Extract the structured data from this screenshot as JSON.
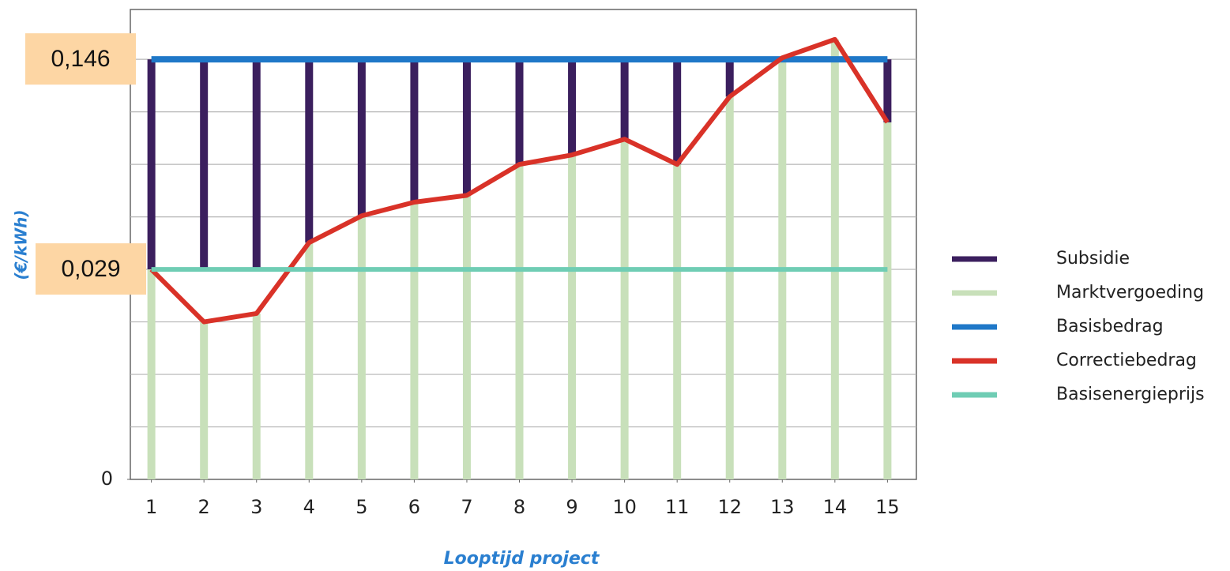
{
  "chart_data": {
    "type": "bar_line",
    "y_axis_label": "(€/kWh)",
    "x_axis_label": "Looptijd project",
    "x": [
      1,
      2,
      3,
      4,
      5,
      6,
      7,
      8,
      9,
      10,
      11,
      12,
      13,
      14,
      15
    ],
    "xlim": [
      0.6,
      15.55
    ],
    "xticks": [
      1,
      2,
      3,
      4,
      5,
      6,
      7,
      8,
      9,
      10,
      11,
      12,
      13,
      14,
      15
    ],
    "ylim": [
      0,
      8.95
    ],
    "yticks": [
      0
    ],
    "ygrid": [
      1,
      2,
      3,
      4,
      5,
      6,
      7,
      8
    ],
    "legend": "right",
    "annotations": [
      {
        "text": "0,146",
        "y": 8
      },
      {
        "text": "0,029",
        "y": 4
      }
    ],
    "series": [
      {
        "name": "Subsidie",
        "type": "bar_down",
        "color": "#3b1f5e",
        "values": [
          4,
          4,
          4,
          3.49,
          2.98,
          2.72,
          2.59,
          2.0,
          1.82,
          1.52,
          2.0,
          0.71,
          0,
          0,
          1.2
        ]
      },
      {
        "name": "Marktvergoeding",
        "type": "bar",
        "color": "#c8e0ba",
        "values": [
          4.0,
          3.0,
          3.16,
          4.51,
          5.02,
          5.28,
          5.41,
          6.0,
          6.18,
          6.48,
          6.0,
          7.29,
          8.03,
          8.38,
          6.8
        ]
      },
      {
        "name": "Basisbedrag",
        "type": "line",
        "color": "#1f78c8",
        "values": [
          8,
          8,
          8,
          8,
          8,
          8,
          8,
          8,
          8,
          8,
          8,
          8,
          8,
          8,
          8
        ]
      },
      {
        "name": "Correctiebedrag",
        "type": "line",
        "color": "#d93228",
        "values": [
          4.0,
          3.0,
          3.16,
          4.51,
          5.02,
          5.28,
          5.41,
          6.0,
          6.18,
          6.48,
          6.0,
          7.29,
          8.03,
          8.38,
          6.8
        ]
      },
      {
        "name": "Basisenergieprijs",
        "type": "line",
        "color": "#6fcdb4",
        "values": [
          4,
          4,
          4,
          4,
          4,
          4,
          4,
          4,
          4,
          4,
          4,
          4,
          4,
          4,
          4
        ]
      }
    ]
  }
}
